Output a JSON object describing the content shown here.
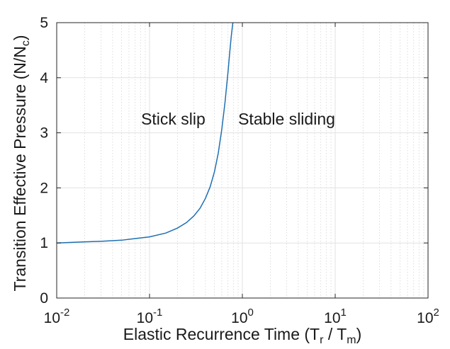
{
  "chart_data": {
    "type": "line",
    "x_scale": "log",
    "xlim": [
      0.01,
      100
    ],
    "ylim": [
      0,
      5
    ],
    "grid": true,
    "xlabel": {
      "main": "Elastic Recurrence Time (T",
      "sub1": "r",
      "mid": " / T",
      "sub2": "m",
      "end": ")"
    },
    "ylabel": {
      "main": "Transition Effective Pressure (N/N",
      "sub": "c",
      "end": ")"
    },
    "x_ticks": [
      {
        "value": 0.01,
        "base": "10",
        "exp": "-2"
      },
      {
        "value": 0.1,
        "base": "10",
        "exp": "-1"
      },
      {
        "value": 1,
        "base": "10",
        "exp": "0"
      },
      {
        "value": 10,
        "base": "10",
        "exp": "1"
      },
      {
        "value": 100,
        "base": "10",
        "exp": "2"
      }
    ],
    "y_ticks": [
      {
        "value": 0,
        "label": "0"
      },
      {
        "value": 1,
        "label": "1"
      },
      {
        "value": 2,
        "label": "2"
      },
      {
        "value": 3,
        "label": "3"
      },
      {
        "value": 4,
        "label": "4"
      },
      {
        "value": 5,
        "label": "5"
      }
    ],
    "annotations": [
      {
        "text": "Stick slip",
        "x": 0.18,
        "y": 3.25
      },
      {
        "text": "Stable sliding",
        "x": 3.0,
        "y": 3.25
      }
    ],
    "series": [
      {
        "color": "#1f6fb2",
        "x": [
          0.01,
          0.02,
          0.03,
          0.05,
          0.07,
          0.1,
          0.15,
          0.2,
          0.25,
          0.3,
          0.35,
          0.4,
          0.45,
          0.5,
          0.55,
          0.6,
          0.65,
          0.7,
          0.73,
          0.76,
          0.79
        ],
        "y": [
          1.0,
          1.02,
          1.03,
          1.05,
          1.08,
          1.11,
          1.18,
          1.27,
          1.37,
          1.49,
          1.63,
          1.81,
          2.02,
          2.29,
          2.63,
          3.06,
          3.55,
          4.1,
          4.45,
          4.76,
          5.0
        ]
      }
    ]
  }
}
